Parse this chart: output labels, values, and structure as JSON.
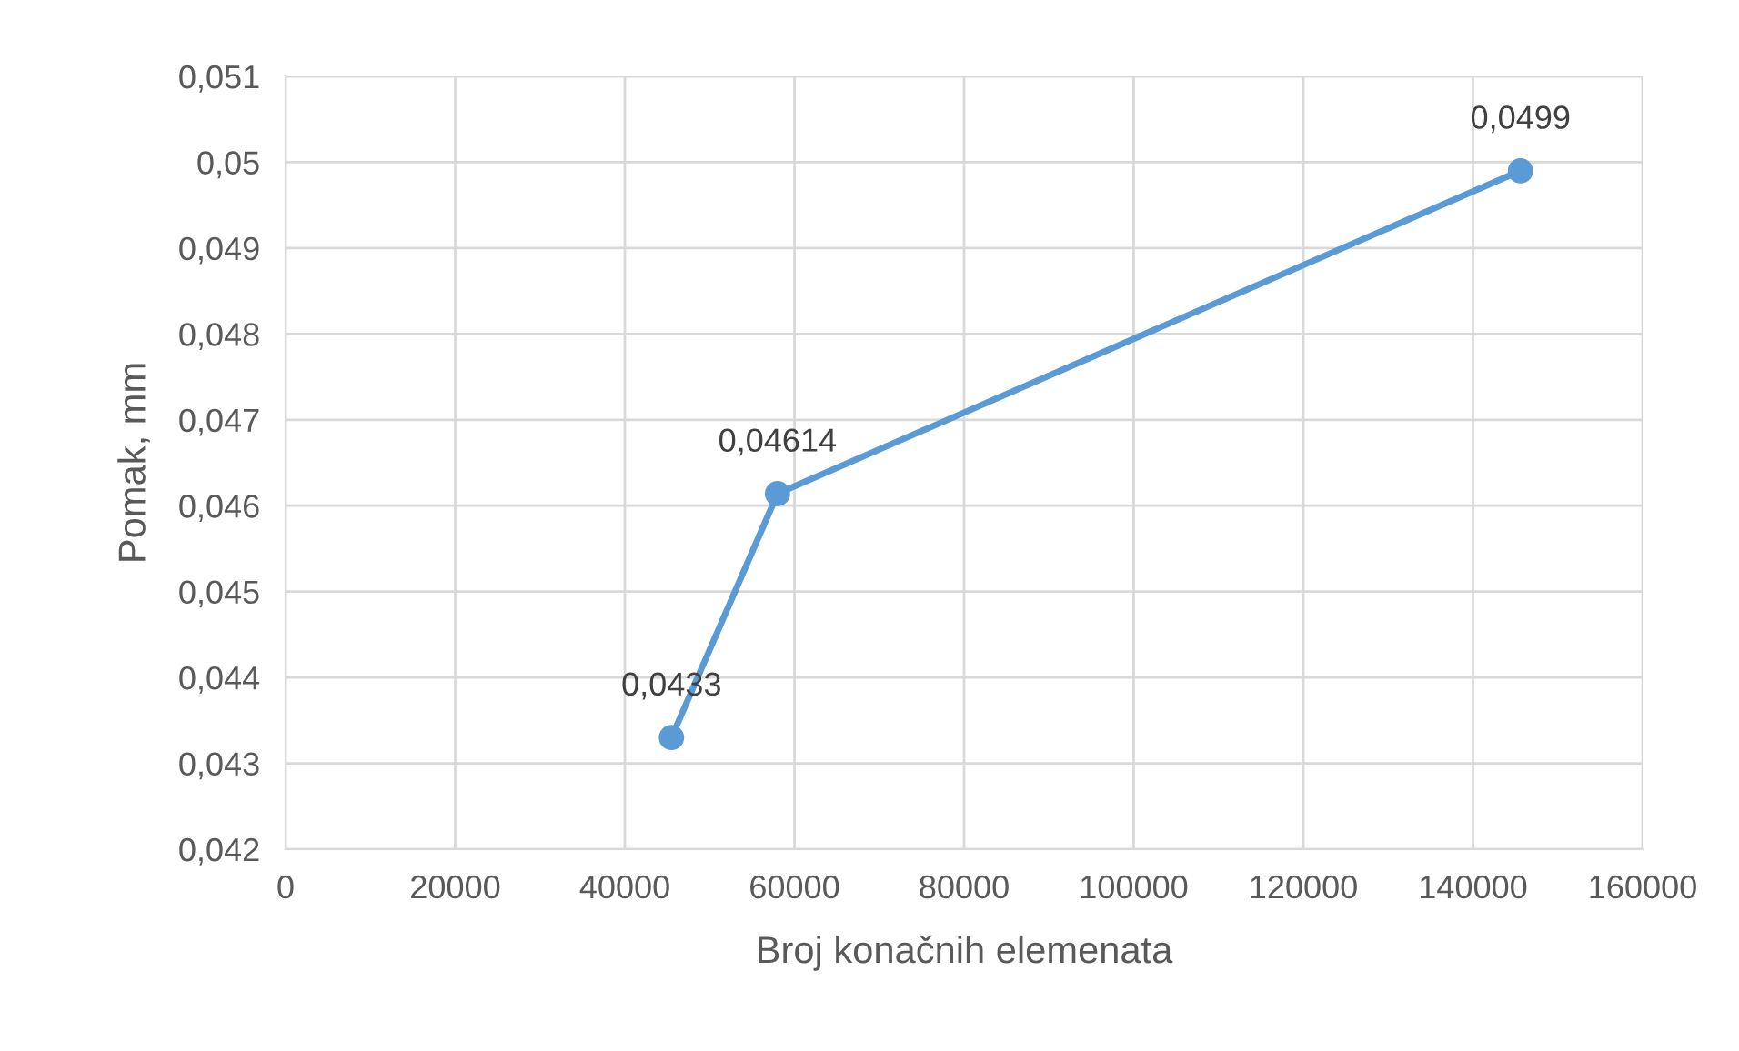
{
  "chart_data": {
    "type": "line",
    "xlabel": "Broj konačnih elemenata",
    "ylabel": "Pomak, mm",
    "x": [
      45500,
      58000,
      145600
    ],
    "series": [
      {
        "color": "#5b9bd5",
        "values": [
          0.0433,
          0.04614,
          0.0499
        ],
        "value_labels": [
          "0,0433",
          "0,04614",
          "0,0499"
        ]
      }
    ],
    "xlim": [
      0,
      160000
    ],
    "xticks": [
      0,
      20000,
      40000,
      60000,
      80000,
      100000,
      120000,
      140000,
      160000
    ],
    "ylim": [
      0.042,
      0.051
    ],
    "yticks": [
      {
        "value": 0.042,
        "label": "0,042"
      },
      {
        "value": 0.043,
        "label": "0,043"
      },
      {
        "value": 0.044,
        "label": "0,044"
      },
      {
        "value": 0.045,
        "label": "0,045"
      },
      {
        "value": 0.046,
        "label": "0,046"
      },
      {
        "value": 0.047,
        "label": "0,047"
      },
      {
        "value": 0.048,
        "label": "0,048"
      },
      {
        "value": 0.049,
        "label": "0,049"
      },
      {
        "value": 0.05,
        "label": "0,05"
      },
      {
        "value": 0.051,
        "label": "0,051"
      }
    ],
    "grid": true,
    "marker": "circle",
    "line_style": "solid",
    "legend": false
  }
}
